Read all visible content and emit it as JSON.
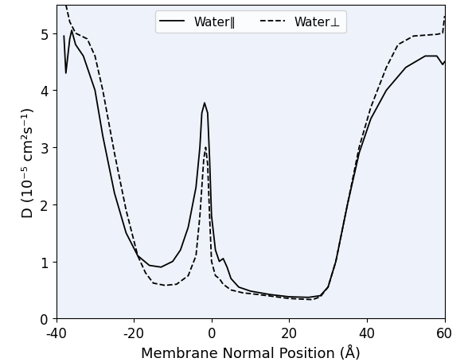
{
  "chart_data": {
    "type": "line",
    "x_label": "Membrane Normal Position (Å)",
    "y_label": "D (10⁻⁵ cm²s⁻¹)",
    "xlim": [
      -40,
      60
    ],
    "xticks": [
      -40,
      -20,
      0,
      20,
      40,
      60
    ],
    "ylim": [
      0,
      5.5
    ],
    "yticks": [
      0,
      1,
      2,
      3,
      4,
      5
    ],
    "legend": "upper center",
    "series": [
      {
        "name": "Water∥",
        "color": "#000000",
        "line_style": "solid",
        "x": [
          -38,
          -37.5,
          -36.5,
          -36,
          -35,
          -33,
          -30,
          -28,
          -25,
          -22,
          -19,
          -16,
          -13,
          -10,
          -8,
          -6,
          -4,
          -3,
          -2.5,
          -1.8,
          -1,
          -0.5,
          0,
          1,
          2,
          3,
          4,
          5,
          7,
          10,
          15,
          20,
          25,
          28,
          30,
          32,
          35,
          38,
          41,
          45,
          50,
          55,
          58,
          59.5,
          60
        ],
        "values": [
          4.95,
          4.3,
          4.9,
          5.05,
          4.8,
          4.6,
          4.0,
          3.2,
          2.2,
          1.5,
          1.1,
          0.93,
          0.9,
          1.0,
          1.2,
          1.6,
          2.3,
          3.0,
          3.6,
          3.78,
          3.6,
          2.8,
          1.8,
          1.2,
          1.0,
          1.05,
          0.9,
          0.7,
          0.55,
          0.48,
          0.42,
          0.38,
          0.37,
          0.4,
          0.55,
          1.0,
          2.0,
          2.9,
          3.5,
          4.0,
          4.4,
          4.6,
          4.6,
          4.45,
          4.5
        ]
      },
      {
        "name": "Water⊥",
        "color": "#000000",
        "line_style": "dashed",
        "x": [
          -37.5,
          -36.5,
          -35,
          -32,
          -30,
          -28,
          -25,
          -22,
          -19,
          -17,
          -15,
          -12,
          -9,
          -6,
          -4,
          -3,
          -2,
          -1.5,
          -1,
          -0.5,
          0,
          1,
          2,
          3,
          5,
          8,
          12,
          20,
          26,
          28,
          30,
          32,
          35,
          38,
          41,
          45,
          48,
          52,
          58,
          59.5,
          60
        ],
        "values": [
          5.5,
          5.2,
          5.0,
          4.9,
          4.6,
          4.0,
          2.9,
          1.9,
          1.1,
          0.8,
          0.62,
          0.58,
          0.6,
          0.75,
          1.1,
          1.8,
          2.8,
          3.0,
          2.7,
          1.8,
          1.0,
          0.75,
          0.7,
          0.6,
          0.5,
          0.45,
          0.42,
          0.35,
          0.33,
          0.38,
          0.55,
          1.0,
          2.0,
          3.0,
          3.7,
          4.4,
          4.8,
          4.95,
          4.98,
          5.0,
          5.3
        ]
      }
    ]
  }
}
